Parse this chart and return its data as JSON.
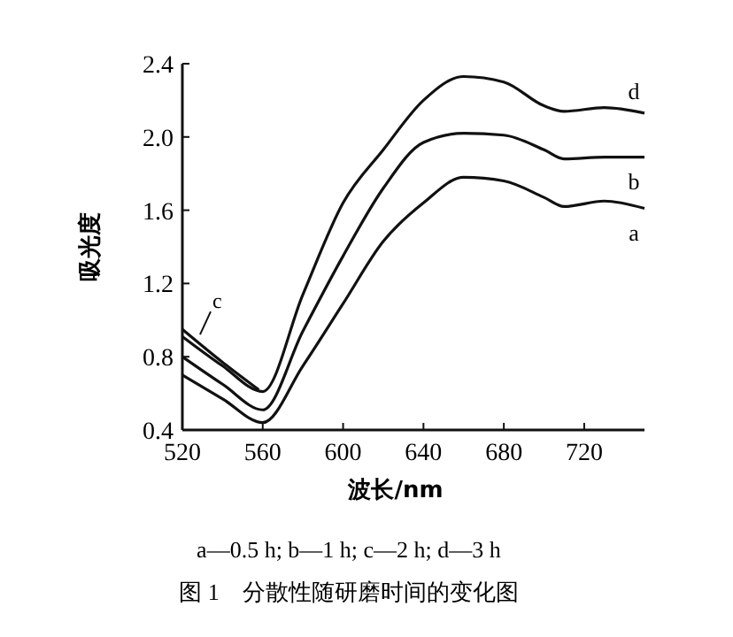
{
  "chart_data": {
    "type": "line",
    "xlabel": "波长/nm",
    "ylabel": "吸光度",
    "xlim": [
      520,
      750
    ],
    "xticks": [
      520,
      560,
      600,
      640,
      680,
      720
    ],
    "ylim": [
      0.4,
      2.4
    ],
    "yticks": [
      {
        "value": 0.4,
        "label": "0.4"
      },
      {
        "value": 0.8,
        "label": "0.8"
      },
      {
        "value": 1.2,
        "label": "1.2"
      },
      {
        "value": 1.6,
        "label": "1.6"
      },
      {
        "value": 2.0,
        "label": "2.0"
      },
      {
        "value": 2.4,
        "label": "2.4"
      }
    ],
    "grid": false,
    "marker": "none",
    "line_style": "solid",
    "series": [
      {
        "name": "a",
        "color": "#111111",
        "x": [
          520,
          540,
          560,
          580,
          600,
          620,
          640,
          660,
          680,
          700,
          710,
          730,
          750
        ],
        "values": [
          0.7,
          0.57,
          0.44,
          0.75,
          1.09,
          1.43,
          1.64,
          1.78,
          1.76,
          1.67,
          1.62,
          1.65,
          1.61
        ]
      },
      {
        "name": "b",
        "color": "#111111",
        "x": [
          520,
          540,
          560,
          580,
          600,
          620,
          640,
          660,
          680,
          700,
          710,
          730,
          750
        ],
        "values": [
          0.8,
          0.65,
          0.51,
          0.94,
          1.35,
          1.72,
          1.97,
          2.02,
          2.01,
          1.93,
          1.88,
          1.89,
          1.89
        ]
      },
      {
        "name": "c",
        "color": "#111111",
        "x": [
          520,
          540,
          558
        ],
        "values": [
          0.95,
          0.77,
          0.62
        ]
      },
      {
        "name": "d",
        "color": "#111111",
        "x": [
          520,
          540,
          560,
          580,
          600,
          620,
          640,
          660,
          680,
          700,
          710,
          730,
          750
        ],
        "values": [
          0.91,
          0.75,
          0.61,
          1.14,
          1.64,
          1.93,
          2.2,
          2.33,
          2.3,
          2.17,
          2.14,
          2.16,
          2.13
        ]
      }
    ],
    "annotations": [
      "a—0.5 h; b—1 h; c—2 h; d—3 h",
      "图 1　分散性随研磨时间的变化图"
    ]
  }
}
